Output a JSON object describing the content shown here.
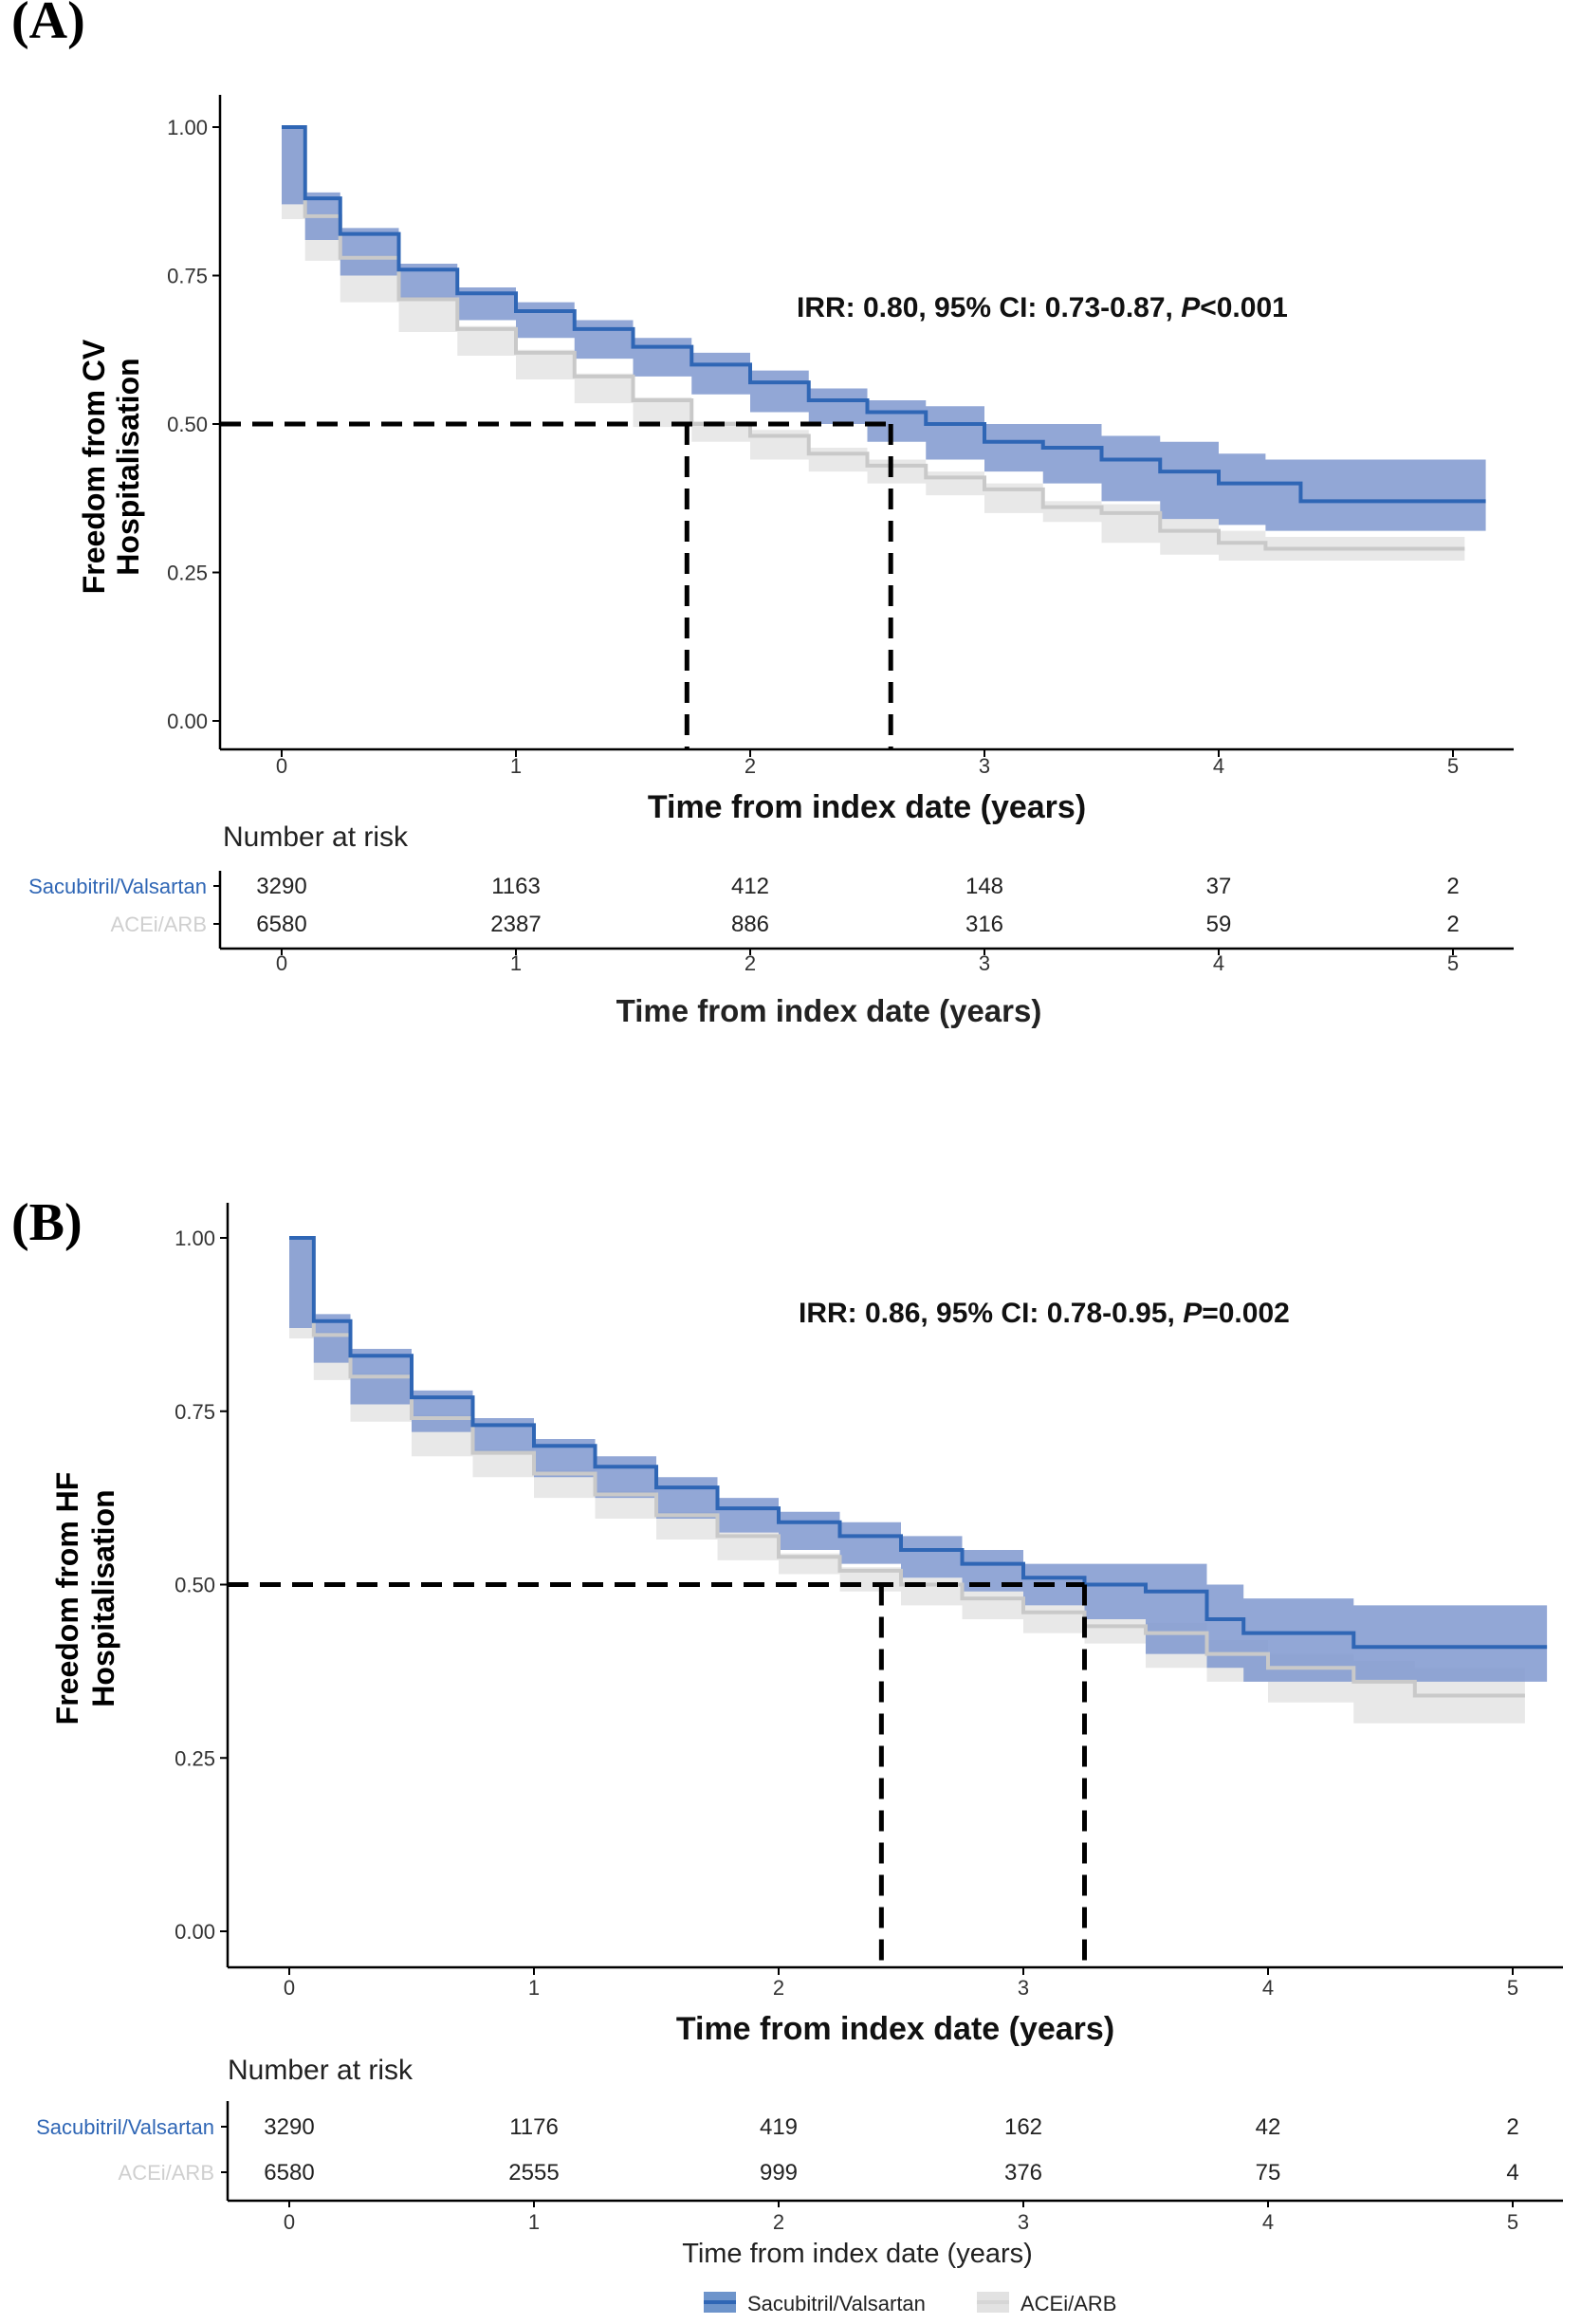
{
  "chart_data": [
    {
      "type": "line",
      "panel_label": "(A)",
      "ylabel_lines": [
        "Freedom from CV",
        "Hospitalisation"
      ],
      "xlabel": "Time from index date (years)",
      "annotation": {
        "pre": "IRR: 0.80, 95% CI: 0.73-0.87, ",
        "p": "P",
        "post": "<0.001"
      },
      "xlim": [
        -0.25,
        5.25
      ],
      "ylim": [
        0,
        1
      ],
      "x_ticks": [
        "0",
        "1",
        "2",
        "3",
        "4",
        "5"
      ],
      "y_ticks": [
        "0.00",
        "0.25",
        "0.50",
        "0.75",
        "1.00"
      ],
      "median_survival": {
        "y": 0.5,
        "ACEi/ARB": 1.73,
        "Sacubitril/Valsartan": 2.6
      },
      "series": [
        {
          "name": "Sacubitril/Valsartan",
          "color": "#2f66b5",
          "band_color": "#7f98cf",
          "x": [
            0,
            0.1,
            0.25,
            0.5,
            0.75,
            1.0,
            1.25,
            1.5,
            1.75,
            2.0,
            2.25,
            2.5,
            2.75,
            3.0,
            3.25,
            3.5,
            3.75,
            4.0,
            4.2,
            4.35,
            5.14
          ],
          "y": [
            1.0,
            0.88,
            0.82,
            0.76,
            0.72,
            0.69,
            0.66,
            0.63,
            0.6,
            0.57,
            0.54,
            0.52,
            0.5,
            0.47,
            0.46,
            0.44,
            0.42,
            0.4,
            0.4,
            0.37,
            0.37
          ],
          "lower": [
            1.0,
            0.87,
            0.81,
            0.75,
            0.71,
            0.675,
            0.645,
            0.61,
            0.58,
            0.55,
            0.52,
            0.5,
            0.47,
            0.44,
            0.42,
            0.4,
            0.37,
            0.34,
            0.33,
            0.32,
            0.32
          ],
          "upper": [
            1.0,
            0.89,
            0.83,
            0.77,
            0.73,
            0.705,
            0.675,
            0.645,
            0.62,
            0.59,
            0.56,
            0.54,
            0.53,
            0.5,
            0.5,
            0.48,
            0.47,
            0.45,
            0.44,
            0.44,
            0.44
          ]
        },
        {
          "name": "ACEi/ARB",
          "color": "#c9c9c9",
          "band_color": "#e4e4e4",
          "x": [
            0,
            0.1,
            0.25,
            0.5,
            0.75,
            1.0,
            1.25,
            1.5,
            1.75,
            2.0,
            2.25,
            2.5,
            2.75,
            3.0,
            3.25,
            3.5,
            3.75,
            4.0,
            4.2,
            5.05
          ],
          "y": [
            1.0,
            0.85,
            0.78,
            0.71,
            0.66,
            0.62,
            0.58,
            0.54,
            0.5,
            0.48,
            0.45,
            0.43,
            0.41,
            0.39,
            0.36,
            0.35,
            0.32,
            0.3,
            0.29,
            0.29
          ],
          "lower": [
            1.0,
            0.845,
            0.775,
            0.705,
            0.655,
            0.615,
            0.575,
            0.535,
            0.495,
            0.47,
            0.44,
            0.42,
            0.4,
            0.38,
            0.35,
            0.335,
            0.3,
            0.28,
            0.27,
            0.27
          ],
          "upper": [
            1.0,
            0.855,
            0.785,
            0.715,
            0.665,
            0.625,
            0.585,
            0.545,
            0.505,
            0.49,
            0.46,
            0.44,
            0.42,
            0.4,
            0.37,
            0.365,
            0.34,
            0.32,
            0.31,
            0.31
          ]
        }
      ],
      "risk_table": {
        "title": "Number at risk",
        "xlabel": "Time from index date (years)",
        "rows": [
          {
            "name": "Sacubitril/Valsartan",
            "color": "#2f66b5",
            "values": [
              "3290",
              "1163",
              "412",
              "148",
              "37",
              "2"
            ]
          },
          {
            "name": "ACEi/ARB",
            "color": "#cfcfcf",
            "values": [
              "6580",
              "2387",
              "886",
              "316",
              "59",
              "2"
            ]
          }
        ]
      }
    },
    {
      "type": "line",
      "panel_label": "(B)",
      "ylabel_lines": [
        "Freedom from HF",
        "Hospitalisation"
      ],
      "xlabel": "Time from index date (years)",
      "annotation": {
        "pre": "IRR: 0.86, 95% CI: 0.78-0.95, ",
        "p": "P",
        "post": "=0.002"
      },
      "xlim": [
        -0.25,
        5.25
      ],
      "ylim": [
        0,
        1
      ],
      "x_ticks": [
        "0",
        "1",
        "2",
        "3",
        "4",
        "5"
      ],
      "y_ticks": [
        "0.00",
        "0.25",
        "0.50",
        "0.75",
        "1.00"
      ],
      "median_survival": {
        "y": 0.5,
        "ACEi/ARB": 2.42,
        "Sacubitril/Valsartan": 3.25
      },
      "series": [
        {
          "name": "Sacubitril/Valsartan",
          "color": "#2f66b5",
          "band_color": "#7f98cf",
          "x": [
            0,
            0.1,
            0.25,
            0.5,
            0.75,
            1.0,
            1.25,
            1.5,
            1.75,
            2.0,
            2.25,
            2.5,
            2.75,
            3.0,
            3.25,
            3.5,
            3.75,
            3.9,
            4.35,
            5.14
          ],
          "y": [
            1.0,
            0.88,
            0.83,
            0.77,
            0.73,
            0.7,
            0.67,
            0.64,
            0.61,
            0.59,
            0.57,
            0.55,
            0.53,
            0.51,
            0.5,
            0.49,
            0.45,
            0.43,
            0.41,
            0.41
          ],
          "lower": [
            1.0,
            0.87,
            0.82,
            0.76,
            0.72,
            0.69,
            0.655,
            0.625,
            0.595,
            0.575,
            0.55,
            0.53,
            0.51,
            0.49,
            0.47,
            0.45,
            0.4,
            0.38,
            0.36,
            0.36
          ],
          "upper": [
            1.0,
            0.89,
            0.84,
            0.78,
            0.74,
            0.71,
            0.685,
            0.655,
            0.625,
            0.605,
            0.59,
            0.57,
            0.55,
            0.53,
            0.53,
            0.53,
            0.5,
            0.48,
            0.47,
            0.47
          ]
        },
        {
          "name": "ACEi/ARB",
          "color": "#c9c9c9",
          "band_color": "#e4e4e4",
          "x": [
            0,
            0.1,
            0.25,
            0.5,
            0.75,
            1.0,
            1.25,
            1.5,
            1.75,
            2.0,
            2.25,
            2.5,
            2.75,
            3.0,
            3.25,
            3.5,
            3.75,
            4.0,
            4.35,
            4.6,
            5.05
          ],
          "y": [
            1.0,
            0.86,
            0.8,
            0.74,
            0.69,
            0.66,
            0.63,
            0.6,
            0.57,
            0.54,
            0.52,
            0.5,
            0.48,
            0.46,
            0.44,
            0.43,
            0.4,
            0.38,
            0.36,
            0.34,
            0.34
          ],
          "lower": [
            1.0,
            0.855,
            0.795,
            0.735,
            0.685,
            0.655,
            0.625,
            0.595,
            0.565,
            0.535,
            0.515,
            0.49,
            0.47,
            0.45,
            0.43,
            0.415,
            0.38,
            0.36,
            0.33,
            0.3,
            0.3
          ],
          "upper": [
            1.0,
            0.865,
            0.805,
            0.745,
            0.695,
            0.665,
            0.635,
            0.605,
            0.575,
            0.545,
            0.525,
            0.51,
            0.49,
            0.47,
            0.45,
            0.445,
            0.42,
            0.4,
            0.39,
            0.38,
            0.38
          ]
        }
      ],
      "risk_table": {
        "title": "Number at risk",
        "xlabel": "Time from index date (years)",
        "rows": [
          {
            "name": "Sacubitril/Valsartan",
            "color": "#2f66b5",
            "values": [
              "3290",
              "1176",
              "419",
              "162",
              "42",
              "2"
            ]
          },
          {
            "name": "ACEi/ARB",
            "color": "#cfcfcf",
            "values": [
              "6580",
              "2555",
              "999",
              "376",
              "75",
              "4"
            ]
          }
        ]
      }
    }
  ],
  "legend": {
    "placement": "bottom",
    "items": [
      {
        "label": "Sacubitril/Valsartan",
        "color": "#2f66b5"
      },
      {
        "label": "ACEi/ARB",
        "color": "#d6d6d6"
      }
    ]
  }
}
